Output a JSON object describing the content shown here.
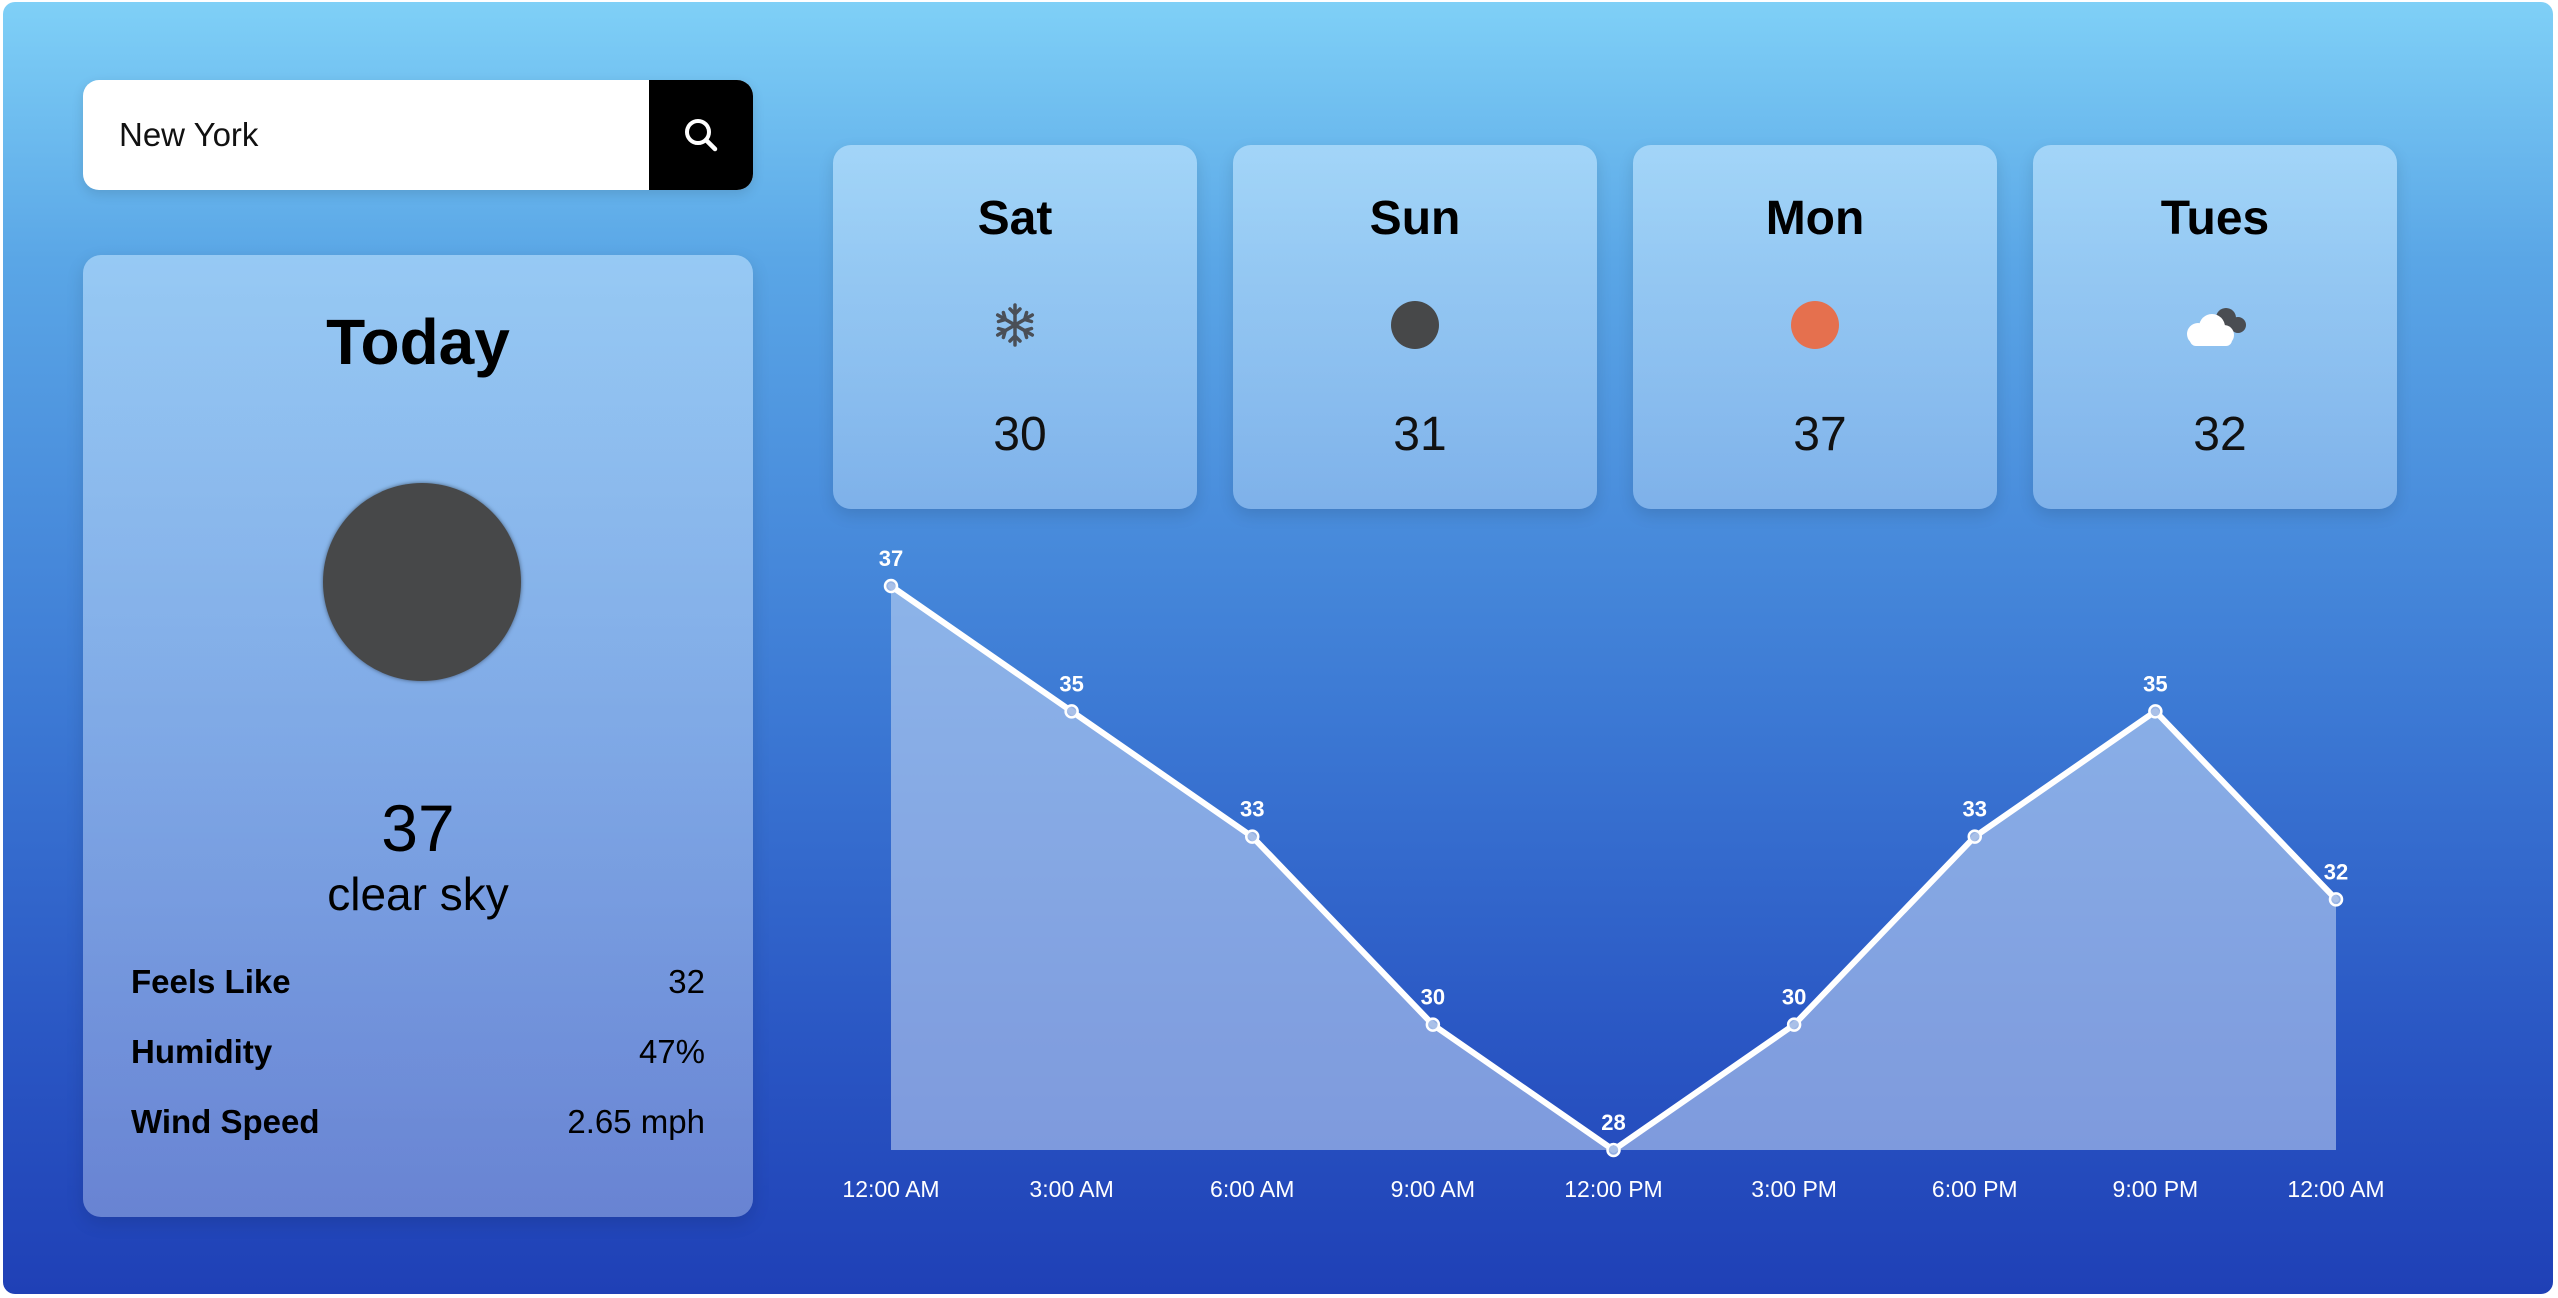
{
  "search": {
    "value": "New York",
    "placeholder": "Search city",
    "button_icon": "search-icon"
  },
  "today": {
    "title": "Today",
    "icon": "dark-circle-icon",
    "temp": "37",
    "description": "clear sky",
    "details": [
      {
        "label": "Feels Like",
        "value": "32"
      },
      {
        "label": "Humidity",
        "value": "47%"
      },
      {
        "label": "Wind Speed",
        "value": "2.65 mph"
      }
    ]
  },
  "forecast": [
    {
      "day": "Sat",
      "icon": "snowflake-icon",
      "temp": "30"
    },
    {
      "day": "Sun",
      "icon": "dark-circle-icon",
      "temp": "31"
    },
    {
      "day": "Mon",
      "icon": "orange-sun-icon",
      "temp": "37"
    },
    {
      "day": "Tues",
      "icon": "cloud-icon",
      "temp": "32"
    }
  ],
  "colors": {
    "background_top": "#7fd0f7",
    "background_bottom": "#1f40b6",
    "today_icon": "#474849",
    "sun_icon": "#e5704e",
    "search_button": "#000000"
  },
  "chart_data": {
    "type": "area",
    "x": [
      "12:00 AM",
      "3:00 AM",
      "6:00 AM",
      "9:00 AM",
      "12:00 PM",
      "3:00 PM",
      "6:00 PM",
      "9:00 PM",
      "12:00 AM"
    ],
    "values": [
      37,
      35,
      33,
      30,
      28,
      30,
      33,
      35,
      32
    ],
    "ylim": [
      28,
      37
    ],
    "grid": false,
    "legend": "none",
    "title": "",
    "xlabel": "",
    "ylabel": ""
  }
}
